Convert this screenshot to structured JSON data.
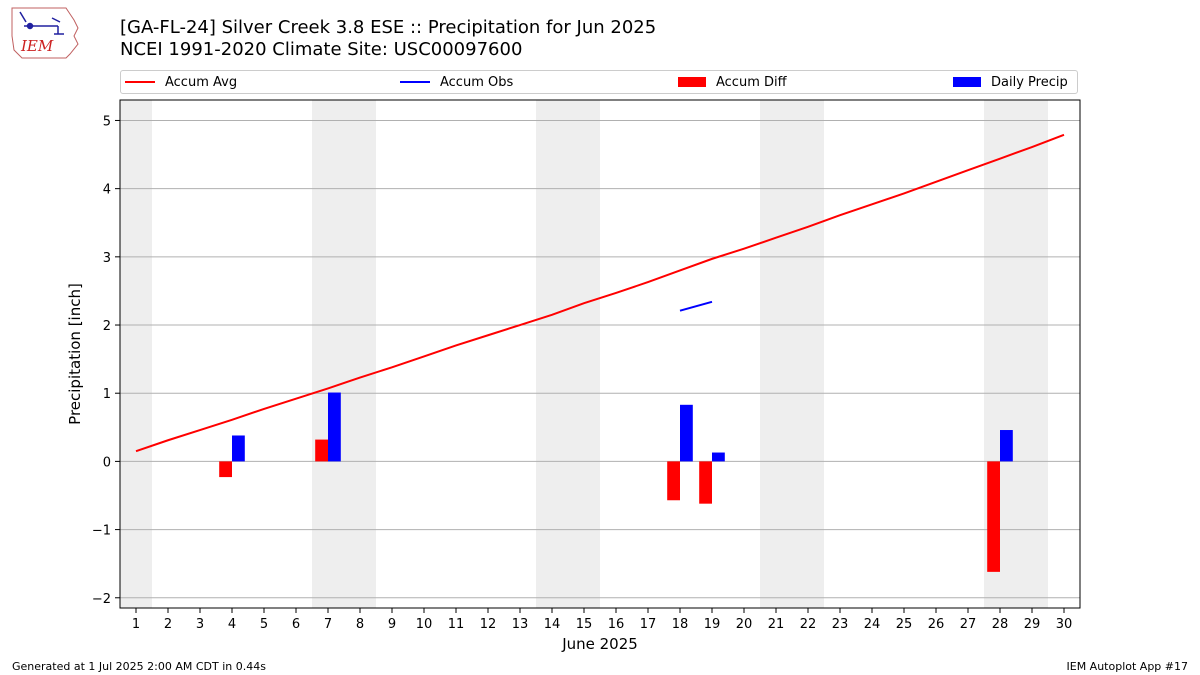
{
  "title_line1": "[GA-FL-24] Silver Creek 3.8 ESE :: Precipitation for Jun 2025",
  "title_line2": "NCEI 1991-2020 Climate Site: USC00097600",
  "logo_text": "IEM",
  "footer_left": "Generated at 1 Jul 2025 2:00 AM CDT in 0.44s",
  "footer_right": "IEM Autoplot App #17",
  "colors": {
    "avg": "#ff0000",
    "obs": "#0000ff",
    "diff": "#ff0000",
    "daily": "#0000ff",
    "weekend_band": "#eeeeee",
    "grid": "#b0b0b0"
  },
  "chart_data": {
    "type": "bar",
    "xlabel": "June 2025",
    "ylabel": "Precipitation [inch]",
    "xlim": [
      0.5,
      30.5
    ],
    "ylim": [
      -2.15,
      5.3
    ],
    "yticks": [
      -2,
      -1,
      0,
      1,
      2,
      3,
      4,
      5
    ],
    "ytick_labels": [
      "−2",
      "−1",
      "0",
      "1",
      "2",
      "3",
      "4",
      "5"
    ],
    "days": [
      1,
      2,
      3,
      4,
      5,
      6,
      7,
      8,
      9,
      10,
      11,
      12,
      13,
      14,
      15,
      16,
      17,
      18,
      19,
      20,
      21,
      22,
      23,
      24,
      25,
      26,
      27,
      28,
      29,
      30
    ],
    "weekend_days": [
      1,
      7,
      8,
      14,
      15,
      21,
      22,
      28,
      29
    ],
    "legend": [
      "Accum Avg",
      "Accum Obs",
      "Accum Diff",
      "Daily Precip"
    ],
    "legend_placement": "top",
    "grid": true,
    "series": [
      {
        "name": "Accum Avg",
        "type": "line",
        "x": [
          1,
          2,
          3,
          4,
          5,
          6,
          7,
          8,
          9,
          10,
          11,
          12,
          13,
          14,
          15,
          16,
          17,
          18,
          19,
          20,
          21,
          22,
          23,
          24,
          25,
          26,
          27,
          28,
          29,
          30
        ],
        "values": [
          0.15,
          0.31,
          0.46,
          0.61,
          0.77,
          0.92,
          1.07,
          1.23,
          1.38,
          1.54,
          1.7,
          1.85,
          2.0,
          2.15,
          2.32,
          2.47,
          2.63,
          2.8,
          2.97,
          3.12,
          3.28,
          3.44,
          3.61,
          3.77,
          3.93,
          4.1,
          4.27,
          4.44,
          4.61,
          4.79
        ]
      },
      {
        "name": "Accum Obs",
        "type": "line",
        "x": [
          18,
          19
        ],
        "values": [
          2.21,
          2.34
        ]
      },
      {
        "name": "Accum Diff",
        "type": "bar",
        "x": [
          4,
          7,
          18,
          19,
          28
        ],
        "values": [
          -0.23,
          0.32,
          -0.57,
          -0.62,
          -1.62
        ]
      },
      {
        "name": "Daily Precip",
        "type": "bar",
        "x": [
          4,
          7,
          18,
          19,
          28
        ],
        "values": [
          0.38,
          1.01,
          0.83,
          0.13,
          0.46
        ]
      }
    ]
  }
}
